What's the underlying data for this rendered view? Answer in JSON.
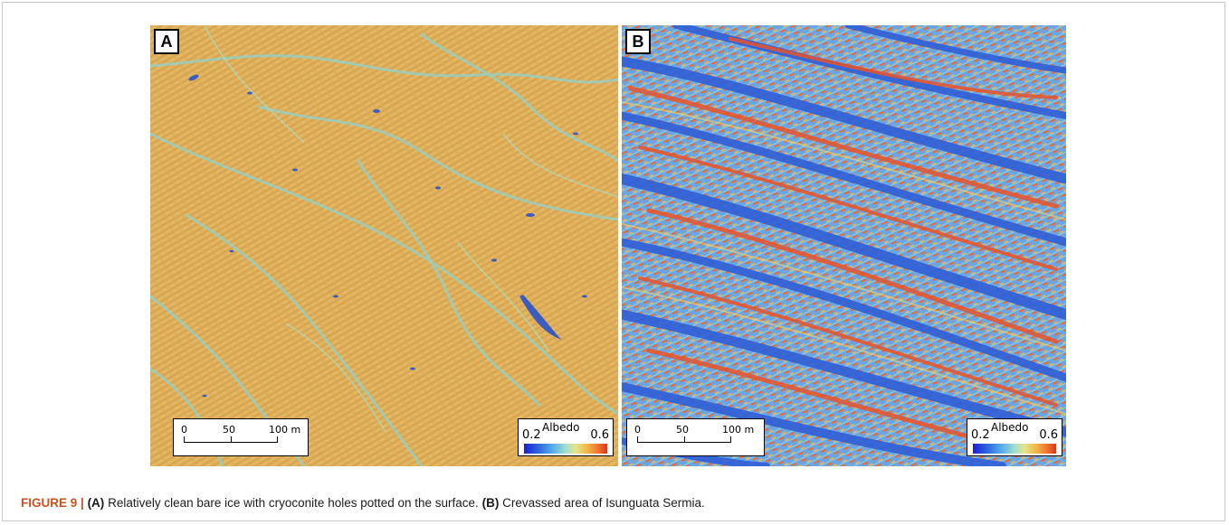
{
  "panels": [
    {
      "letter": "A",
      "base_color": "#e6ab4d",
      "scale_labels": [
        "0",
        "50",
        "100 m"
      ],
      "legend": {
        "title": "Albedo",
        "min": "0.2",
        "max": "0.6"
      }
    },
    {
      "letter": "B",
      "base_color": "#4f8ee0",
      "scale_labels": [
        "0",
        "50",
        "100 m"
      ],
      "legend": {
        "title": "Albedo",
        "min": "0.2",
        "max": "0.6"
      }
    }
  ],
  "caption": {
    "figure_label": "FIGURE 9 |",
    "a_label": "(A)",
    "a_text": "Relatively clean bare ice with cryoconite holes potted on the surface.",
    "b_label": "(B)",
    "b_text": "Crevassed area of Isunguata Sermia."
  },
  "colors": {
    "caption_label": "#c8511f",
    "ramp_low": "#1d1ed2",
    "ramp_high": "#d9381c"
  }
}
